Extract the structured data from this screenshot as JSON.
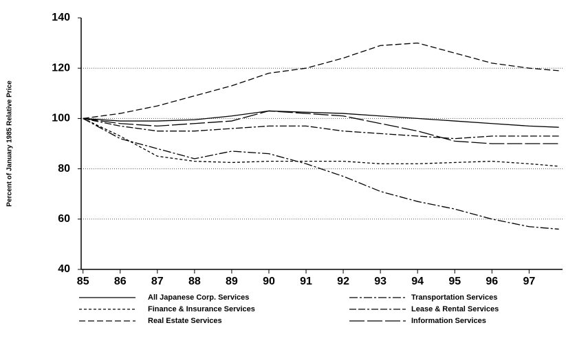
{
  "chart_data": {
    "type": "line",
    "y_label": "Percent of January 1985 Relative Price",
    "x": [
      85,
      86,
      87,
      88,
      89,
      90,
      91,
      92,
      93,
      94,
      95,
      96,
      97,
      97.8
    ],
    "xlim": [
      84.95,
      97.9
    ],
    "xticks": [
      85,
      86,
      87,
      88,
      89,
      90,
      91,
      92,
      93,
      94,
      95,
      96,
      97
    ],
    "ylim": [
      40,
      140
    ],
    "yticks": [
      40,
      60,
      80,
      100,
      120,
      140
    ],
    "grid": true,
    "legend": "bottom",
    "series": [
      {
        "name": "All Japanese Corp. Services",
        "color": "#000000",
        "dash": "none",
        "values": [
          100,
          99,
          99,
          99.5,
          101,
          103,
          102.5,
          102,
          101,
          100,
          99,
          98,
          97,
          96.5
        ]
      },
      {
        "name": "Finance & Insurance Services",
        "color": "#000000",
        "dash": "4,3",
        "values": [
          100,
          93,
          85,
          83,
          82.5,
          83,
          83,
          83,
          82,
          82,
          82.5,
          83,
          82,
          81
        ]
      },
      {
        "name": "Real Estate Services",
        "color": "#000000",
        "dash": "9,4",
        "values": [
          100,
          102,
          105,
          109,
          113,
          118,
          120,
          124,
          129,
          130,
          126,
          122,
          120,
          119
        ]
      },
      {
        "name": "Transportation Services",
        "color": "#000000",
        "dash": "12,3,3,3",
        "values": [
          100,
          92,
          88,
          84,
          87,
          86,
          82,
          77,
          71,
          67,
          64,
          60,
          57,
          56
        ]
      },
      {
        "name": "Lease & Rental Services",
        "color": "#000000",
        "dash": "10,3,10,3,3,3",
        "values": [
          100,
          97,
          95,
          95,
          96,
          97,
          97,
          95,
          94,
          93,
          92,
          93,
          93,
          93
        ]
      },
      {
        "name": "Information Services",
        "color": "#000000",
        "dash": "22,4",
        "values": [
          100,
          98,
          97,
          98,
          99,
          103,
          102,
          101,
          98,
          95,
          91,
          90,
          90,
          90
        ]
      }
    ]
  }
}
